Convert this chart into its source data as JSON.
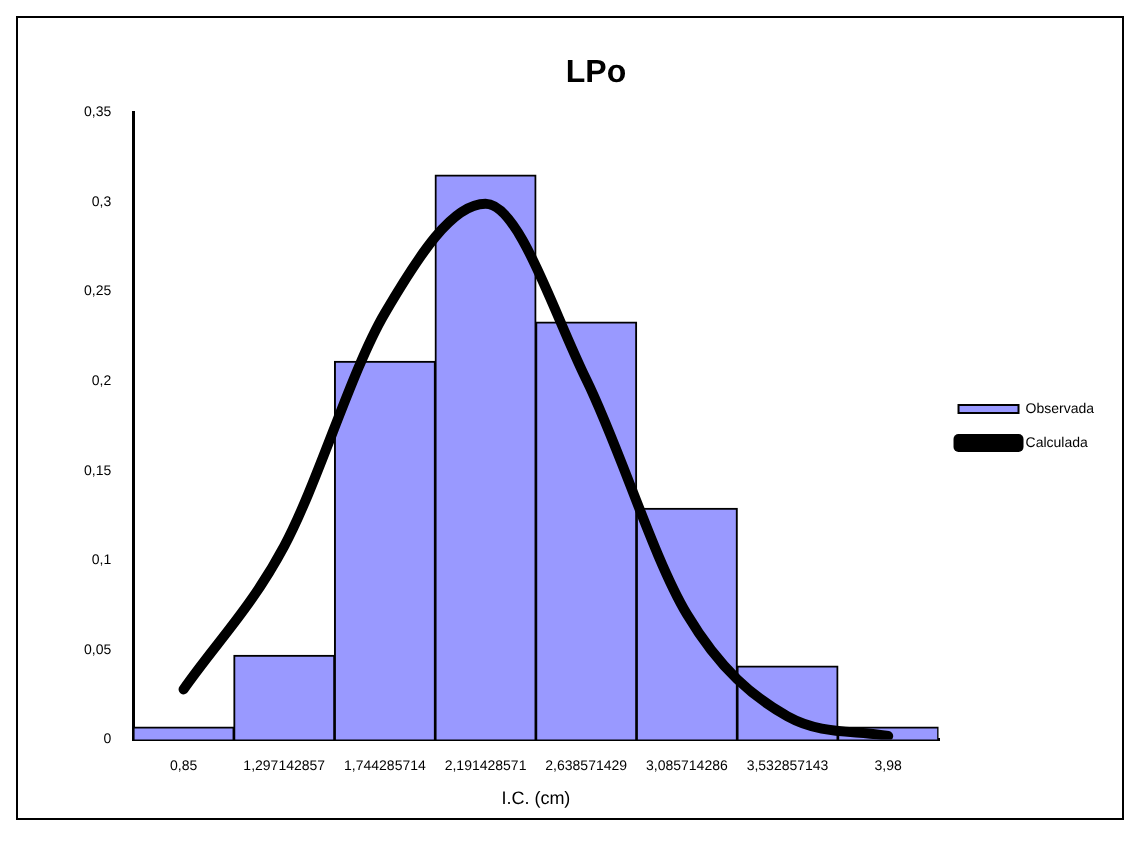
{
  "chart_data": {
    "type": "bar",
    "title": "LPo",
    "xlabel": "I.C. (cm)",
    "categories": [
      "0,85",
      "1,297142857",
      "1,744285714",
      "2,191428571",
      "2,638571429",
      "3,085714286",
      "3,532857143",
      "3,98"
    ],
    "series": [
      {
        "name": "Observada",
        "color": "#9999ff",
        "values": [
          0.007,
          0.047,
          0.211,
          0.315,
          0.233,
          0.129,
          0.041,
          0.007
        ]
      },
      {
        "name": "Calculada",
        "type": "line",
        "color": "#000000",
        "values": [
          0.028,
          0.108,
          0.238,
          0.299,
          0.201,
          0.07,
          0.013,
          0.002
        ]
      }
    ],
    "ylim": [
      0,
      0.35
    ],
    "yticks": [
      {
        "value": 0,
        "label": "0"
      },
      {
        "value": 0.05,
        "label": "0,05"
      },
      {
        "value": 0.1,
        "label": "0,1"
      },
      {
        "value": 0.15,
        "label": "0,15"
      },
      {
        "value": 0.2,
        "label": "0,2"
      },
      {
        "value": 0.25,
        "label": "0,25"
      },
      {
        "value": 0.3,
        "label": "0,3"
      },
      {
        "value": 0.35,
        "label": "0,35"
      }
    ],
    "grid": false,
    "legend": "right",
    "marker": "none",
    "line_style": "solid"
  }
}
